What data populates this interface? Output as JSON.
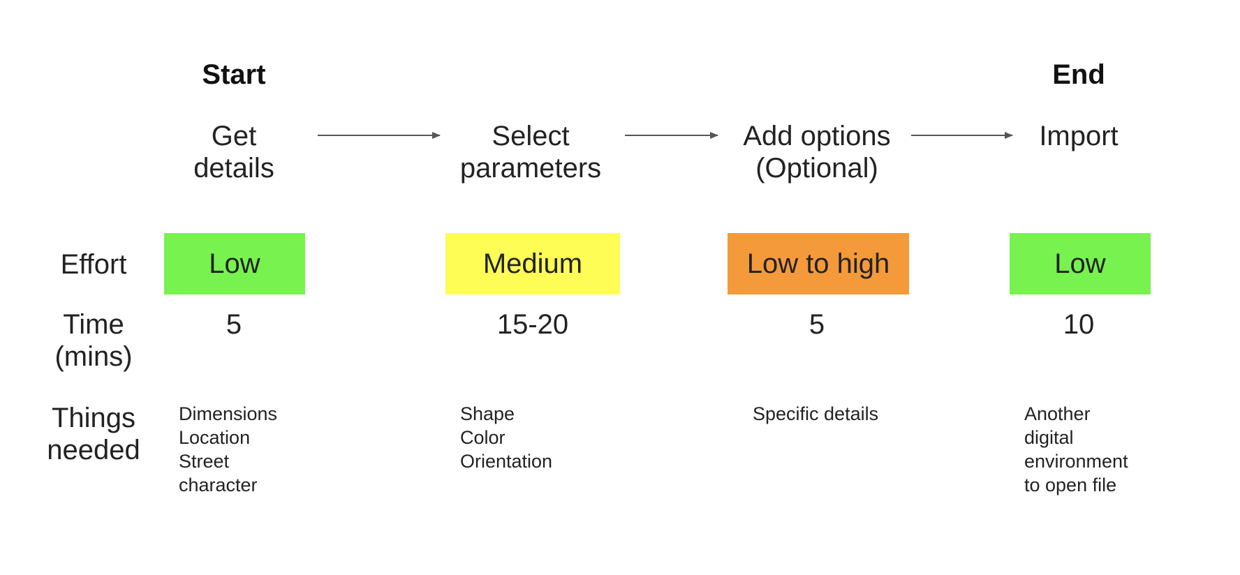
{
  "markers": {
    "start": "Start",
    "end": "End"
  },
  "steps": [
    {
      "title": "Get\ndetails",
      "effort": "Low",
      "effort_color": "#77f24f",
      "time": "5",
      "needs": [
        "Dimensions",
        "Location",
        "Street",
        "character"
      ]
    },
    {
      "title": "Select\nparameters",
      "effort": "Medium",
      "effort_color": "#fdfd55",
      "time": "15-20",
      "needs": [
        "Shape",
        "Color",
        "Orientation"
      ]
    },
    {
      "title": "Add options\n(Optional)",
      "effort": "Low to high",
      "effort_color": "#f49a3a",
      "time": "5",
      "needs": [
        "Specific details"
      ]
    },
    {
      "title": "Import",
      "effort": "Low",
      "effort_color": "#77f24f",
      "time": "10",
      "needs": [
        "Another",
        "digital",
        "environment",
        "to open file"
      ]
    }
  ],
  "row_labels": {
    "effort": "Effort",
    "time": "Time\n(mins)",
    "things_needed": "Things\nneeded"
  },
  "arrow_color": "#555555"
}
